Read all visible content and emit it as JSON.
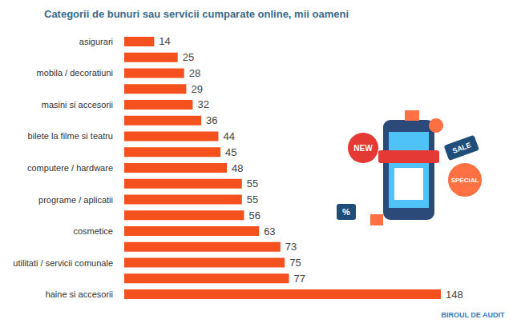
{
  "chart_data": {
    "type": "bar",
    "orientation": "horizontal",
    "title": "Categorii de bunuri sau servicii cumparate online, mii oameni",
    "categories": [
      "asigurari",
      null,
      "mobila / decoratiuni",
      null,
      "masini si accesorii",
      null,
      "bilete la filme si teatru",
      null,
      "computere / hardware",
      null,
      "programe / aplicatii",
      null,
      "cosmetice",
      null,
      "utilitati / servicii comunale",
      null,
      "haine si accesorii"
    ],
    "values": [
      14,
      25,
      28,
      29,
      32,
      36,
      44,
      45,
      48,
      55,
      55,
      56,
      63,
      73,
      75,
      77,
      148
    ],
    "color": "#f4511e",
    "xlim": [
      0,
      148
    ],
    "grid": false,
    "tick_labels": "y",
    "data_labels": true,
    "annotations": [
      "NEW",
      "SALE",
      "SPECIAL",
      "%",
      "BIROUL DE AUDIT"
    ]
  }
}
